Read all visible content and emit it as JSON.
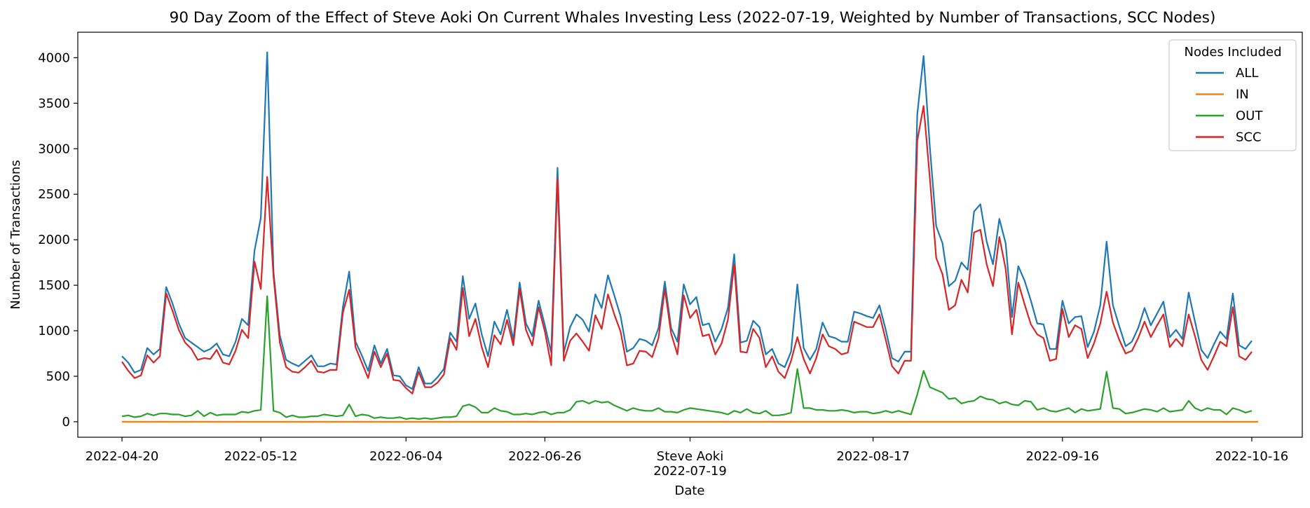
{
  "chart_data": {
    "type": "line",
    "title": "90 Day Zoom of the Effect of Steve Aoki On Current Whales Investing Less (2022-07-19, Weighted by Number of Transactions, SCC Nodes)",
    "xlabel": "Date",
    "ylabel": "Number of Transactions",
    "x_start": "2022-04-20",
    "x_end": "2022-10-16",
    "xlim": [
      "2022-04-13",
      "2022-10-24"
    ],
    "ylim": [
      -170,
      4280
    ],
    "x_ticks": [
      "2022-04-20",
      "2022-05-12",
      "2022-06-04",
      "2022-06-26",
      "2022-07-19",
      "2022-08-17",
      "2022-09-16",
      "2022-10-16"
    ],
    "x_tick_labels": [
      "2022-04-20",
      "2022-05-12",
      "2022-06-04",
      "2022-06-26",
      "2022-07-19",
      "2022-08-17",
      "2022-09-16",
      "2022-10-16"
    ],
    "y_ticks": [
      0,
      500,
      1000,
      1500,
      2000,
      2500,
      3000,
      3500,
      4000
    ],
    "y_tick_labels": [
      "0",
      "500",
      "1000",
      "1500",
      "2000",
      "2500",
      "3000",
      "3500",
      "4000"
    ],
    "event": {
      "label": "Steve Aoki",
      "date": "2022-07-19"
    },
    "grid": false,
    "legend": {
      "title": "Nodes Included",
      "placement": "top-right"
    },
    "series": [
      {
        "name": "ALL",
        "color": "#1f77b4",
        "values": [
          720,
          650,
          540,
          570,
          810,
          740,
          800,
          1480,
          1300,
          1080,
          920,
          870,
          820,
          770,
          800,
          860,
          740,
          720,
          880,
          1130,
          1060,
          1880,
          2240,
          4060,
          1650,
          950,
          680,
          640,
          610,
          670,
          730,
          610,
          610,
          640,
          630,
          1260,
          1650,
          880,
          730,
          560,
          840,
          640,
          800,
          510,
          500,
          400,
          360,
          600,
          420,
          420,
          490,
          580,
          980,
          880,
          1600,
          1130,
          1300,
          960,
          720,
          1100,
          960,
          1230,
          900,
          1530,
          1080,
          940,
          1330,
          1060,
          760,
          2790,
          760,
          1040,
          1180,
          1120,
          990,
          1400,
          1250,
          1610,
          1390,
          1160,
          770,
          810,
          910,
          890,
          840,
          1030,
          1540,
          1030,
          880,
          1510,
          1290,
          1370,
          1060,
          1080,
          880,
          1020,
          1250,
          1840,
          870,
          890,
          1110,
          1040,
          740,
          800,
          640,
          600,
          770,
          1510,
          810,
          680,
          800,
          1090,
          940,
          920,
          880,
          880,
          1210,
          1190,
          1160,
          1140,
          1280,
          1010,
          700,
          660,
          770,
          770,
          3380,
          4020,
          3010,
          2150,
          1960,
          1490,
          1550,
          1750,
          1670,
          2310,
          2390,
          1980,
          1730,
          2230,
          1960,
          1150,
          1710,
          1550,
          1330,
          1080,
          1070,
          800,
          800,
          1330,
          1080,
          1150,
          1160,
          820,
          990,
          1280,
          1980,
          1280,
          1050,
          830,
          880,
          1030,
          1250,
          1060,
          1190,
          1320,
          930,
          1010,
          910,
          1420,
          1100,
          790,
          700,
          850,
          990,
          910,
          1410,
          840,
          800,
          890
        ]
      },
      {
        "name": "IN",
        "color": "#ff7f0e",
        "values": [
          0,
          0,
          0,
          0,
          0,
          0,
          0,
          0,
          0,
          0,
          0,
          0,
          0,
          0,
          0,
          0,
          0,
          0,
          0,
          0,
          0,
          0,
          0,
          0,
          0,
          0,
          0,
          0,
          0,
          0,
          0,
          0,
          0,
          0,
          0,
          0,
          0,
          0,
          0,
          0,
          0,
          0,
          0,
          0,
          0,
          0,
          0,
          0,
          0,
          0,
          0,
          0,
          0,
          0,
          0,
          0,
          0,
          0,
          0,
          0,
          0,
          0,
          0,
          0,
          0,
          0,
          0,
          0,
          0,
          0,
          0,
          0,
          0,
          0,
          0,
          0,
          0,
          0,
          0,
          0,
          0,
          0,
          0,
          0,
          0,
          0,
          0,
          0,
          0,
          0,
          0,
          0,
          0,
          0,
          0,
          0,
          0,
          0,
          0,
          0,
          0,
          0,
          0,
          0,
          0,
          0,
          0,
          0,
          0,
          0,
          0,
          0,
          0,
          0,
          0,
          0,
          0,
          0,
          0,
          0,
          0,
          0,
          0,
          0,
          0,
          0,
          0,
          0,
          0,
          0,
          0,
          0,
          0,
          0,
          0,
          0,
          0,
          0,
          0,
          0,
          0,
          0,
          0,
          0,
          0,
          0,
          0,
          0,
          0,
          0,
          0,
          0,
          0,
          0,
          0,
          0,
          0,
          0,
          0,
          0,
          0,
          0,
          0,
          0,
          0,
          0,
          0,
          0,
          0,
          0,
          0,
          0,
          0,
          0,
          0,
          0,
          0,
          0,
          0,
          0,
          0
        ]
      },
      {
        "name": "OUT",
        "color": "#2ca02c",
        "values": [
          60,
          70,
          50,
          60,
          90,
          70,
          90,
          90,
          80,
          80,
          60,
          70,
          120,
          60,
          100,
          70,
          80,
          80,
          80,
          110,
          100,
          120,
          130,
          1380,
          120,
          100,
          50,
          70,
          50,
          50,
          60,
          60,
          80,
          70,
          60,
          70,
          190,
          60,
          80,
          70,
          40,
          50,
          40,
          40,
          50,
          30,
          40,
          30,
          40,
          30,
          40,
          50,
          50,
          60,
          170,
          190,
          160,
          100,
          100,
          150,
          120,
          110,
          80,
          80,
          90,
          80,
          100,
          110,
          80,
          100,
          100,
          130,
          220,
          230,
          200,
          230,
          210,
          220,
          180,
          150,
          120,
          150,
          130,
          120,
          120,
          150,
          110,
          110,
          100,
          130,
          150,
          140,
          130,
          120,
          110,
          100,
          80,
          120,
          100,
          140,
          100,
          90,
          120,
          70,
          70,
          80,
          100,
          580,
          150,
          150,
          130,
          130,
          120,
          120,
          130,
          120,
          100,
          110,
          110,
          90,
          100,
          120,
          100,
          120,
          100,
          80,
          300,
          560,
          380,
          350,
          320,
          250,
          260,
          200,
          220,
          230,
          280,
          250,
          240,
          200,
          220,
          190,
          180,
          230,
          220,
          130,
          150,
          120,
          110,
          130,
          150,
          100,
          140,
          120,
          130,
          140,
          550,
          150,
          140,
          90,
          100,
          120,
          140,
          130,
          110,
          150,
          110,
          120,
          130,
          230,
          150,
          120,
          150,
          130,
          130,
          80,
          150,
          130,
          100,
          120
        ]
      },
      {
        "name": "SCC",
        "color": "#d62728",
        "values": [
          660,
          560,
          480,
          510,
          730,
          650,
          720,
          1410,
          1220,
          1010,
          870,
          800,
          680,
          700,
          690,
          790,
          650,
          630,
          780,
          1010,
          920,
          1760,
          1460,
          2690,
          1600,
          870,
          600,
          550,
          540,
          600,
          670,
          550,
          540,
          570,
          570,
          1200,
          1450,
          820,
          650,
          480,
          770,
          600,
          750,
          460,
          450,
          370,
          310,
          550,
          380,
          380,
          430,
          520,
          920,
          790,
          1470,
          940,
          1130,
          820,
          600,
          950,
          850,
          1120,
          840,
          1460,
          1010,
          840,
          1260,
          990,
          620,
          2680,
          670,
          890,
          970,
          880,
          780,
          1170,
          1020,
          1400,
          1180,
          990,
          620,
          640,
          780,
          770,
          710,
          920,
          1460,
          970,
          740,
          1390,
          1140,
          1230,
          940,
          960,
          740,
          860,
          1120,
          1730,
          770,
          760,
          1020,
          920,
          600,
          720,
          550,
          480,
          670,
          930,
          690,
          530,
          700,
          960,
          830,
          800,
          740,
          760,
          1100,
          1070,
          1040,
          1040,
          1180,
          900,
          610,
          530,
          670,
          670,
          3090,
          3470,
          2670,
          1800,
          1620,
          1230,
          1280,
          1560,
          1420,
          2080,
          2110,
          1730,
          1490,
          2030,
          1680,
          960,
          1530,
          1290,
          1070,
          960,
          920,
          670,
          690,
          1240,
          930,
          1060,
          1020,
          700,
          860,
          1080,
          1430,
          1090,
          900,
          750,
          780,
          920,
          1100,
          930,
          1060,
          1180,
          820,
          910,
          830,
          1180,
          940,
          680,
          570,
          720,
          880,
          830,
          1260,
          720,
          680,
          770
        ]
      }
    ]
  }
}
